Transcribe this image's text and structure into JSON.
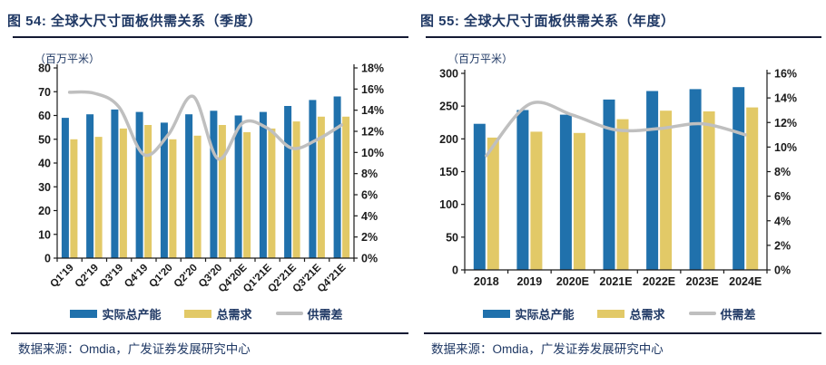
{
  "colors": {
    "capacity_bar": "#2071AC",
    "demand_bar": "#E2C967",
    "gap_line": "#BFBFBF",
    "title_text": "#1F3864",
    "axis_text": "#1A1A1A",
    "rule": "#141A33"
  },
  "chart_data": [
    {
      "id": "quarterly",
      "type": "bar+line",
      "title": "图 54: 全球大尺寸面板供需关系（季度）",
      "unit_label": "（百万平米）",
      "source": "数据来源：Omdia，广发证券发展研究中心",
      "categories": [
        "Q1'19",
        "Q2'19",
        "Q3'19",
        "Q4'19",
        "Q1'20",
        "Q2'20",
        "Q3'20",
        "Q4'20E",
        "Q1'21E",
        "Q2'21E",
        "Q3'21E",
        "Q4'21E"
      ],
      "series": [
        {
          "name": "实际总产能",
          "type": "bar",
          "axis": "left",
          "color_key": "capacity_bar",
          "values": [
            59,
            60.5,
            62.5,
            61.5,
            57,
            60.5,
            62,
            60,
            61.5,
            64,
            66.5,
            68
          ]
        },
        {
          "name": "总需求",
          "type": "bar",
          "axis": "left",
          "color_key": "demand_bar",
          "values": [
            50,
            51,
            54.5,
            56,
            50,
            51.5,
            56,
            53,
            54.5,
            57.5,
            59.5,
            59.5
          ]
        },
        {
          "name": "供需差",
          "type": "line",
          "axis": "right",
          "color_key": "gap_line",
          "values": [
            15.7,
            15.6,
            14.3,
            9.8,
            11.7,
            15.3,
            9.4,
            12.8,
            12.3,
            10.4,
            11.2,
            12.6
          ]
        }
      ],
      "left_axis": {
        "min": 0,
        "max": 80,
        "step": 10
      },
      "right_axis": {
        "min": 0,
        "max": 18,
        "step": 2,
        "suffix": "%"
      },
      "legend": [
        "实际总产能",
        "总需求",
        "供需差"
      ],
      "x_labels_rotated": true
    },
    {
      "id": "annual",
      "type": "bar+line",
      "title": "图 55: 全球大尺寸面板供需关系（年度）",
      "unit_label": "（百万平米）",
      "source": "数据来源：Omdia，广发证券发展研究中心",
      "categories": [
        "2018",
        "2019",
        "2020E",
        "2021E",
        "2022E",
        "2023E",
        "2024E"
      ],
      "series": [
        {
          "name": "实际总产能",
          "type": "bar",
          "axis": "left",
          "color_key": "capacity_bar",
          "values": [
            223,
            244,
            237,
            260,
            273,
            276,
            279
          ]
        },
        {
          "name": "总需求",
          "type": "bar",
          "axis": "left",
          "color_key": "demand_bar",
          "values": [
            202,
            211,
            209,
            230,
            243,
            242,
            248
          ]
        },
        {
          "name": "供需差",
          "type": "line",
          "axis": "right",
          "color_key": "gap_line",
          "values": [
            9.3,
            13.5,
            12.6,
            11.4,
            11.5,
            11.9,
            11.0
          ]
        }
      ],
      "left_axis": {
        "min": 0,
        "max": 300,
        "step": 50
      },
      "right_axis": {
        "min": 0,
        "max": 16,
        "step": 2,
        "suffix": "%"
      },
      "legend": [
        "实际总产能",
        "总需求",
        "供需差"
      ],
      "x_labels_rotated": false
    }
  ]
}
